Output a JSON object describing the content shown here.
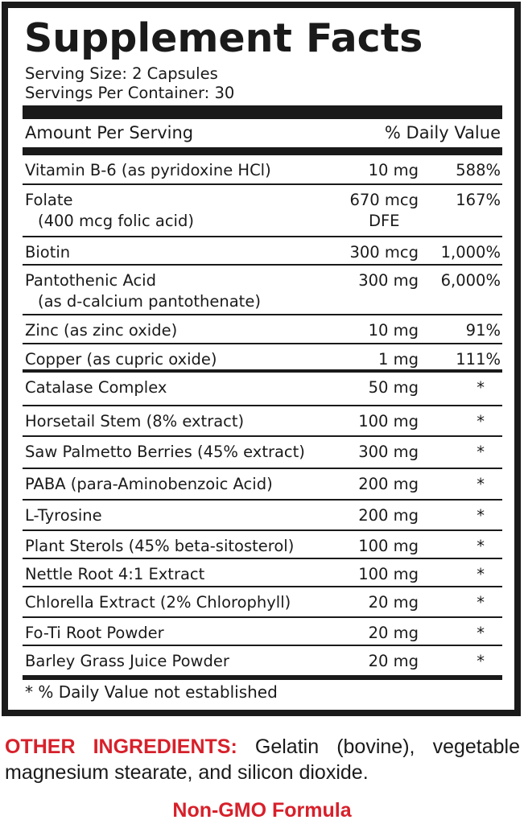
{
  "label": {
    "title": "Supplement Facts",
    "serving_size": "Serving Size: 2 Capsules",
    "servings_per_container": "Servings Per Container: 30",
    "header_amount": "Amount Per Serving",
    "header_dv": "% Daily Value",
    "rows": [
      {
        "name": "Vitamin B-6 (as pyridoxine HCl)",
        "amount": "10 mg",
        "dv": "588%"
      },
      {
        "name": "Folate",
        "name2": "(400 mcg folic acid)",
        "amount": "670 mcg",
        "amount2": "DFE",
        "dv": "167%"
      },
      {
        "name": "Biotin",
        "amount": "300 mcg",
        "dv": "1,000%"
      },
      {
        "name": "Pantothenic Acid",
        "name2": "(as d-calcium pantothenate)",
        "amount": "300 mg",
        "dv": "6,000%"
      },
      {
        "name": "Zinc (as zinc oxide)",
        "amount": "10 mg",
        "dv": "91%"
      },
      {
        "name": "Copper (as cupric oxide)",
        "amount": "1 mg",
        "dv": "111%"
      },
      {
        "name": "Catalase Complex",
        "amount": "50 mg",
        "dv": "*"
      },
      {
        "name": "Horsetail Stem (8% extract)",
        "amount": "100 mg",
        "dv": "*"
      },
      {
        "name": "Saw Palmetto Berries (45% extract)",
        "amount": "300 mg",
        "dv": "*"
      },
      {
        "name": "PABA (para-Aminobenzoic Acid)",
        "amount": "200 mg",
        "dv": "*"
      },
      {
        "name": "L-Tyrosine",
        "amount": "200 mg",
        "dv": "*"
      },
      {
        "name": "Plant Sterols (45% beta-sitosterol)",
        "amount": "100 mg",
        "dv": "*"
      },
      {
        "name": "Nettle Root 4:1 Extract",
        "amount": "100 mg",
        "dv": "*"
      },
      {
        "name": "Chlorella Extract (2% Chlorophyll)",
        "amount": "20 mg",
        "dv": "*"
      },
      {
        "name": "Fo-Ti Root Powder",
        "amount": "20 mg",
        "dv": "*"
      },
      {
        "name": "Barley Grass Juice Powder",
        "amount": "20 mg",
        "dv": "*"
      }
    ],
    "footnote": "* % Daily Value not established"
  },
  "other_ingredients": {
    "label": "OTHER INGREDIENTS:",
    "text": "Gelatin (bovine), vegetable magnesium stearate, and silicon dioxide."
  },
  "badge": "Non-GMO Formula",
  "colors": {
    "text": "#1a1a1a",
    "accent_red": "#d7202a"
  }
}
